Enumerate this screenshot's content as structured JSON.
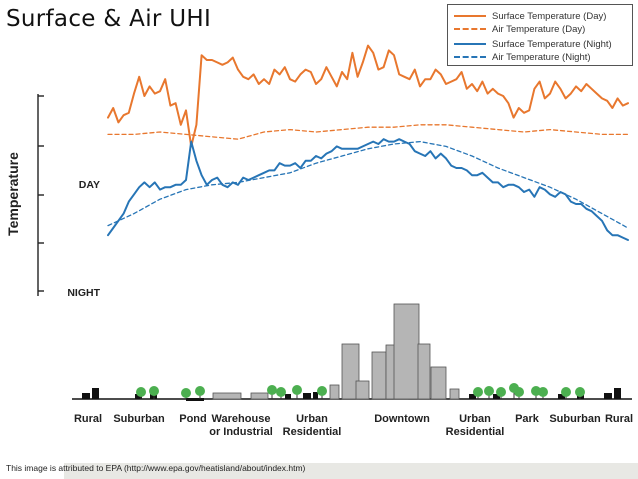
{
  "title": "Surface & Air UHI",
  "caption": "This image is attributed to EPA (http://www.epa.gov/heatisland/about/index.htm)",
  "colors": {
    "surface_day": "#e8772e",
    "air_day": "#e8772e",
    "surface_night": "#2775b6",
    "air_night": "#2775b6",
    "building": "#b5b5b5",
    "tree": "#4caf50"
  },
  "chart_data": {
    "type": "line",
    "title": "Surface & Air UHI",
    "xlabel": "",
    "ylabel": "Temperature",
    "y_markers": [
      "DAY",
      "NIGHT"
    ],
    "categories": [
      "Rural",
      "Suburban",
      "Pond",
      "Warehouse or Industrial",
      "Urban Residential",
      "Downtown",
      "Urban Residential",
      "Park",
      "Suburban",
      "Rural"
    ],
    "ylim": [
      0,
      100
    ],
    "legend_position": "top-right",
    "series": [
      {
        "name": "Surface Temperature (Day)",
        "style": "solid",
        "x": [
          0,
          1,
          2,
          3,
          4,
          5,
          6,
          7,
          8,
          9,
          10,
          11,
          12,
          13,
          14,
          15,
          16,
          17,
          18,
          19,
          20,
          21,
          22,
          23,
          24,
          25,
          26,
          27,
          28,
          29,
          30,
          31,
          32,
          33,
          34,
          35,
          36,
          37,
          38,
          39,
          40,
          41,
          42,
          43,
          44,
          45,
          46,
          47,
          48,
          49,
          50,
          51,
          52,
          53,
          54,
          55,
          56,
          57,
          58,
          59,
          60,
          61,
          62,
          63,
          64,
          65,
          66,
          67,
          68,
          69,
          70,
          71,
          72,
          73,
          74,
          75,
          76,
          77,
          78,
          79,
          80,
          81,
          82,
          83,
          84,
          85,
          86,
          87,
          88,
          89,
          90,
          91,
          92,
          93,
          94,
          95,
          96,
          97,
          98,
          99,
          100
        ],
        "values": [
          76,
          80,
          74,
          77,
          78,
          86,
          93,
          85,
          89,
          86,
          87,
          92,
          81,
          82,
          73,
          79,
          64,
          73,
          102,
          100,
          100,
          99,
          98,
          99,
          101,
          96,
          93,
          92,
          94,
          90,
          92,
          90,
          96,
          94,
          97,
          92,
          91,
          94,
          96,
          95,
          90,
          92,
          97,
          93,
          89,
          95,
          92,
          103,
          93,
          99,
          106,
          103,
          96,
          97,
          104,
          102,
          94,
          93,
          92,
          96,
          89,
          92,
          92,
          96,
          94,
          90,
          91,
          92,
          95,
          88,
          90,
          87,
          91,
          86,
          88,
          86,
          85,
          82,
          76,
          80,
          78,
          79,
          88,
          91,
          84,
          86,
          91,
          88,
          84,
          86,
          89,
          87,
          90,
          88,
          86,
          84,
          83,
          80,
          84,
          81,
          82
        ]
      },
      {
        "name": "Air Temperature (Day)",
        "style": "dashed",
        "x": [
          0,
          5,
          10,
          15,
          20,
          25,
          30,
          35,
          40,
          45,
          50,
          55,
          60,
          65,
          70,
          75,
          80,
          85,
          90,
          95,
          100
        ],
        "values": [
          69,
          69,
          70,
          69,
          68,
          67,
          70,
          71,
          70,
          71,
          72,
          72,
          73,
          73,
          72,
          71,
          70,
          71,
          70,
          69,
          69
        ]
      },
      {
        "name": "Surface Temperature (Night)",
        "style": "solid",
        "x": [
          0,
          1,
          2,
          3,
          4,
          5,
          6,
          7,
          8,
          9,
          10,
          11,
          12,
          13,
          14,
          15,
          16,
          17,
          18,
          19,
          20,
          21,
          22,
          23,
          24,
          25,
          26,
          27,
          28,
          29,
          30,
          31,
          32,
          33,
          34,
          35,
          36,
          37,
          38,
          39,
          40,
          41,
          42,
          43,
          44,
          45,
          46,
          47,
          48,
          49,
          50,
          51,
          52,
          53,
          54,
          55,
          56,
          57,
          58,
          59,
          60,
          61,
          62,
          63,
          64,
          65,
          66,
          67,
          68,
          69,
          70,
          71,
          72,
          73,
          74,
          75,
          76,
          77,
          78,
          79,
          80,
          81,
          82,
          83,
          84,
          85,
          86,
          87,
          88,
          89,
          90,
          91,
          92,
          93,
          94,
          95,
          96,
          97,
          98,
          99,
          100
        ],
        "values": [
          27,
          30,
          33,
          36,
          41,
          44,
          47,
          49,
          47,
          49,
          46,
          47,
          47,
          48,
          48,
          50,
          66,
          58,
          52,
          48,
          50,
          51,
          48,
          47,
          49,
          48,
          51,
          50,
          51,
          52,
          53,
          54,
          54,
          57,
          56,
          56,
          57,
          55,
          58,
          58,
          60,
          59,
          61,
          62,
          64,
          63,
          63,
          63,
          63,
          64,
          65,
          66,
          65,
          67,
          66,
          66,
          67,
          66,
          65,
          62,
          61,
          60,
          62,
          59,
          61,
          59,
          56,
          55,
          55,
          54,
          52,
          52,
          53,
          51,
          49,
          49,
          47,
          48,
          48,
          47,
          45,
          46,
          43,
          47,
          46,
          44,
          43,
          45,
          44,
          41,
          40,
          40,
          38,
          37,
          35,
          33,
          29,
          27,
          27,
          26,
          25
        ]
      },
      {
        "name": "Air Temperature (Night)",
        "style": "dashed",
        "x": [
          0,
          5,
          10,
          15,
          20,
          25,
          30,
          35,
          40,
          45,
          50,
          55,
          60,
          65,
          70,
          75,
          80,
          85,
          90,
          95,
          100
        ],
        "values": [
          31,
          36,
          42,
          46,
          48,
          49,
          51,
          53,
          57,
          60,
          63,
          65,
          66,
          64,
          60,
          55,
          51,
          47,
          42,
          36,
          30
        ]
      }
    ]
  }
}
